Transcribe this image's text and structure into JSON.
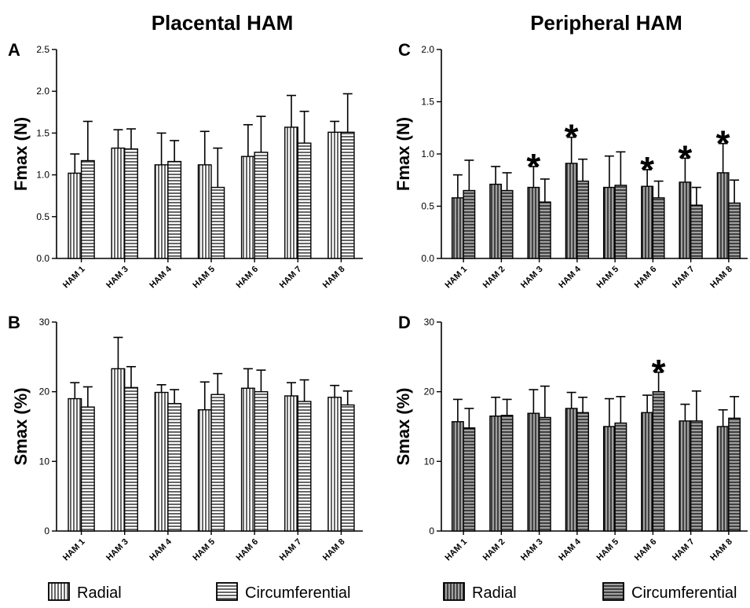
{
  "column_titles": [
    "Placental HAM",
    "Peripheral HAM"
  ],
  "legends": [
    {
      "items": [
        {
          "label": "Radial",
          "pattern": "vertical",
          "fill": "#ffffff"
        },
        {
          "label": "Circumferential",
          "pattern": "horizontal",
          "fill": "#ffffff"
        }
      ]
    },
    {
      "items": [
        {
          "label": "Radial",
          "pattern": "vertical",
          "fill": "#a0a0a0"
        },
        {
          "label": "Circumferential",
          "pattern": "horizontal",
          "fill": "#a0a0a0"
        }
      ]
    }
  ],
  "chart_data": [
    {
      "panel_label": "A",
      "type": "bar",
      "ylabel": "Fmax (N)",
      "ylim": [
        0,
        2.5
      ],
      "yticks": [
        "0.0",
        "0.5",
        "1.0",
        "1.5",
        "2.0",
        "2.5"
      ],
      "categories": [
        "HAM 1",
        "HAM 3",
        "HAM 4",
        "HAM 5",
        "HAM 6",
        "HAM 7",
        "HAM 8"
      ],
      "bar_fill": "#ffffff",
      "series": [
        {
          "name": "Radial",
          "pattern": "vertical",
          "values": [
            1.02,
            1.32,
            1.12,
            1.12,
            1.22,
            1.57,
            1.51
          ],
          "errors": [
            0.23,
            0.22,
            0.38,
            0.4,
            0.38,
            0.38,
            0.13
          ]
        },
        {
          "name": "Circumferential",
          "pattern": "horizontal",
          "values": [
            1.17,
            1.31,
            1.16,
            0.85,
            1.27,
            1.38,
            1.51
          ],
          "errors": [
            0.47,
            0.24,
            0.25,
            0.47,
            0.43,
            0.38,
            0.46
          ]
        }
      ],
      "significance": []
    },
    {
      "panel_label": "B",
      "type": "bar",
      "ylabel": "Smax (%)",
      "ylim": [
        0,
        30
      ],
      "yticks": [
        "0",
        "10",
        "20",
        "30"
      ],
      "categories": [
        "HAM 1",
        "HAM 3",
        "HAM 4",
        "HAM 5",
        "HAM 6",
        "HAM 7",
        "HAM 8"
      ],
      "bar_fill": "#ffffff",
      "series": [
        {
          "name": "Radial",
          "pattern": "vertical",
          "values": [
            19.0,
            23.3,
            19.9,
            17.4,
            20.5,
            19.4,
            19.2
          ],
          "errors": [
            2.3,
            4.5,
            1.1,
            4.0,
            2.8,
            1.9,
            1.7
          ]
        },
        {
          "name": "Circumferential",
          "pattern": "horizontal",
          "values": [
            17.8,
            20.6,
            18.3,
            19.6,
            20.0,
            18.6,
            18.1
          ],
          "errors": [
            2.9,
            3.0,
            2.0,
            3.0,
            3.1,
            3.1,
            2.0
          ]
        }
      ],
      "significance": []
    },
    {
      "panel_label": "C",
      "type": "bar",
      "ylabel": "Fmax (N)",
      "ylim": [
        0,
        2.0
      ],
      "yticks": [
        "0.0",
        "0.5",
        "1.0",
        "1.5",
        "2.0"
      ],
      "categories": [
        "HAM 1",
        "HAM 2",
        "HAM 3",
        "HAM 4",
        "HAM 5",
        "HAM 6",
        "HAM 7",
        "HAM 8"
      ],
      "bar_fill": "#a0a0a0",
      "series": [
        {
          "name": "Radial",
          "pattern": "vertical",
          "values": [
            0.58,
            0.71,
            0.68,
            0.91,
            0.68,
            0.69,
            0.73,
            0.82
          ],
          "errors": [
            0.22,
            0.17,
            0.2,
            0.25,
            0.3,
            0.16,
            0.23,
            0.28
          ]
        },
        {
          "name": "Circumferential",
          "pattern": "horizontal",
          "values": [
            0.65,
            0.65,
            0.54,
            0.74,
            0.7,
            0.58,
            0.51,
            0.53
          ],
          "errors": [
            0.29,
            0.17,
            0.22,
            0.21,
            0.32,
            0.16,
            0.17,
            0.22
          ]
        }
      ],
      "significance": [
        {
          "category": "HAM 3",
          "series": "Radial",
          "mark": "*"
        },
        {
          "category": "HAM 4",
          "series": "Radial",
          "mark": "*"
        },
        {
          "category": "HAM 6",
          "series": "Radial",
          "mark": "*"
        },
        {
          "category": "HAM 7",
          "series": "Radial",
          "mark": "*"
        },
        {
          "category": "HAM 8",
          "series": "Radial",
          "mark": "*"
        }
      ]
    },
    {
      "panel_label": "D",
      "type": "bar",
      "ylabel": "Smax (%)",
      "ylim": [
        0,
        30
      ],
      "yticks": [
        "0",
        "10",
        "20",
        "30"
      ],
      "categories": [
        "HAM 1",
        "HAM 2",
        "HAM 3",
        "HAM 4",
        "HAM 5",
        "HAM 6",
        "HAM 7",
        "HAM 8"
      ],
      "bar_fill": "#a0a0a0",
      "series": [
        {
          "name": "Radial",
          "pattern": "vertical",
          "values": [
            15.7,
            16.5,
            16.9,
            17.6,
            15.0,
            17.0,
            15.8,
            15.0
          ],
          "errors": [
            3.2,
            2.7,
            3.4,
            2.3,
            4.0,
            2.5,
            2.4,
            2.4
          ]
        },
        {
          "name": "Circumferential",
          "pattern": "horizontal",
          "values": [
            14.8,
            16.6,
            16.3,
            17.0,
            15.5,
            20.0,
            15.8,
            16.2
          ],
          "errors": [
            2.8,
            2.3,
            4.5,
            2.2,
            3.8,
            2.8,
            4.3,
            3.1
          ]
        }
      ],
      "significance": [
        {
          "category": "HAM 6",
          "series": "Circumferential",
          "mark": "*"
        }
      ]
    }
  ]
}
